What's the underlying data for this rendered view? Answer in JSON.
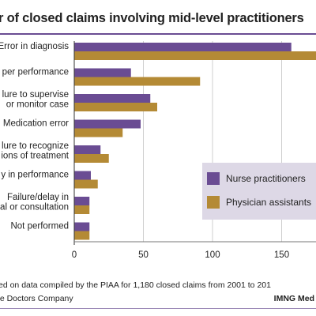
{
  "title": "r of closed claims involving mid-level practitioners",
  "colors": {
    "nurse": "#6a4c93",
    "physician": "#b48a35",
    "legend_bg": "#ddd8e6",
    "grid": "#cfcfcf",
    "rule": "#6a4c93"
  },
  "chart_data": {
    "type": "bar",
    "orientation": "horizontal",
    "categories": [
      [
        "Error in diagnosis"
      ],
      [
        "per performance"
      ],
      [
        "lure to supervise",
        "or monitor case"
      ],
      [
        "Medication error"
      ],
      [
        "lure to recognize",
        "ions of treatment"
      ],
      [
        "y in performance"
      ],
      [
        "Failure/delay in",
        "al or consultation"
      ],
      [
        "Not performed"
      ]
    ],
    "series": [
      {
        "name": "Nurse practitioners",
        "values": [
          157,
          41,
          55,
          48,
          19,
          12,
          11,
          11
        ]
      },
      {
        "name": "Physician assistants",
        "values": [
          178,
          91,
          60,
          35,
          25,
          17,
          11,
          11
        ]
      }
    ],
    "x_ticks": [
      0,
      50,
      100,
      150
    ],
    "xlim": [
      0,
      175
    ],
    "grid": true,
    "legend": "right"
  },
  "footer": {
    "source": "ed on data compiled by the PIAA for 1,180 closed claims from 2001 to 201",
    "credit_left": "he Doctors Company",
    "credit_right": "IMNG Med"
  }
}
